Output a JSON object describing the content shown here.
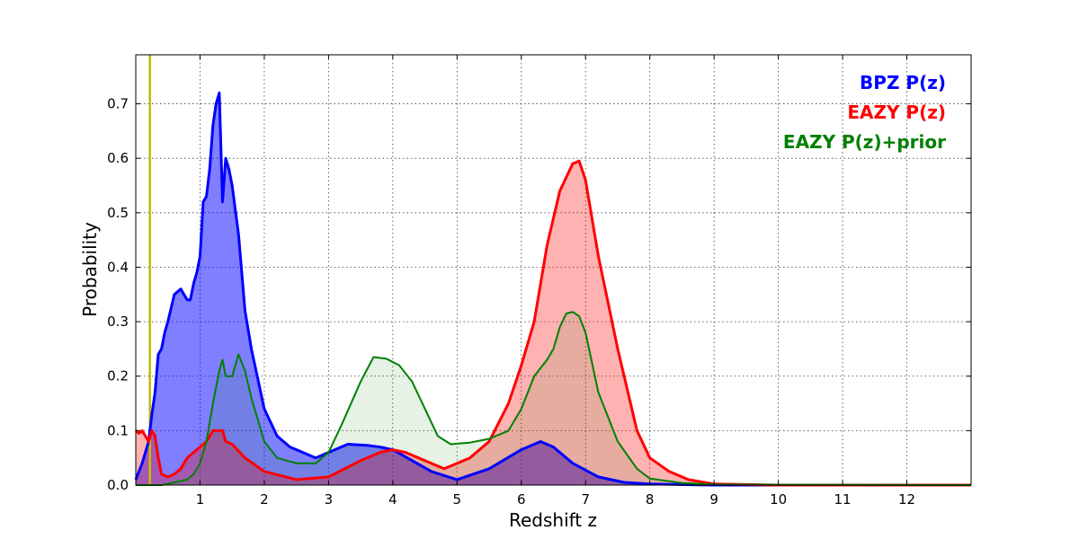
{
  "chart_data": {
    "type": "area",
    "title": "",
    "xlabel": "Redshift z",
    "ylabel": "Probability",
    "xlim": [
      0,
      13
    ],
    "ylim": [
      0,
      0.79
    ],
    "xticks": [
      1,
      2,
      3,
      4,
      5,
      6,
      7,
      8,
      9,
      10,
      11,
      12
    ],
    "yticks": [
      0.0,
      0.1,
      0.2,
      0.3,
      0.4,
      0.5,
      0.6,
      0.7
    ],
    "ytick_labels": [
      "0.0",
      "0.1",
      "0.2",
      "0.3",
      "0.4",
      "0.5",
      "0.6",
      "0.7"
    ],
    "grid": true,
    "legend_position": "top-right",
    "vline": {
      "x": 0.22,
      "color": "#bfbf00"
    },
    "series": [
      {
        "name": "BPZ P(z)",
        "color": "#0000ff",
        "fill_opacity": 0.5,
        "line_width": 3,
        "x": [
          0,
          0.1,
          0.2,
          0.25,
          0.3,
          0.35,
          0.4,
          0.45,
          0.5,
          0.6,
          0.7,
          0.8,
          0.85,
          0.9,
          0.95,
          1.0,
          1.05,
          1.1,
          1.15,
          1.2,
          1.25,
          1.3,
          1.35,
          1.4,
          1.45,
          1.5,
          1.6,
          1.7,
          1.8,
          2.0,
          2.2,
          2.4,
          2.6,
          2.8,
          3.0,
          3.3,
          3.6,
          3.8,
          4.0,
          4.3,
          4.6,
          5.0,
          5.5,
          6.0,
          6.3,
          6.5,
          6.8,
          7.2,
          7.6,
          8.0,
          9.0,
          13.0
        ],
        "y": [
          0.01,
          0.04,
          0.08,
          0.13,
          0.17,
          0.24,
          0.25,
          0.28,
          0.3,
          0.35,
          0.36,
          0.34,
          0.34,
          0.37,
          0.39,
          0.42,
          0.52,
          0.53,
          0.58,
          0.66,
          0.7,
          0.72,
          0.52,
          0.6,
          0.58,
          0.55,
          0.46,
          0.32,
          0.25,
          0.14,
          0.09,
          0.07,
          0.06,
          0.05,
          0.06,
          0.075,
          0.073,
          0.07,
          0.065,
          0.045,
          0.025,
          0.01,
          0.03,
          0.065,
          0.08,
          0.07,
          0.04,
          0.015,
          0.005,
          0.002,
          0.0,
          0.0
        ]
      },
      {
        "name": "EAZY P(z)",
        "color": "#ff0000",
        "fill_opacity": 0.3,
        "line_width": 3,
        "x": [
          0,
          0.05,
          0.1,
          0.15,
          0.2,
          0.25,
          0.3,
          0.35,
          0.4,
          0.5,
          0.6,
          0.7,
          0.8,
          0.9,
          1.0,
          1.1,
          1.2,
          1.3,
          1.35,
          1.4,
          1.5,
          1.7,
          2.0,
          2.5,
          3.0,
          3.5,
          3.8,
          4.0,
          4.2,
          4.5,
          4.8,
          5.2,
          5.5,
          5.8,
          6.0,
          6.2,
          6.4,
          6.6,
          6.8,
          6.9,
          7.0,
          7.2,
          7.5,
          7.8,
          8.0,
          8.3,
          8.6,
          9.0,
          10.0,
          13.0
        ],
        "y": [
          0.1,
          0.095,
          0.1,
          0.09,
          0.08,
          0.1,
          0.09,
          0.05,
          0.02,
          0.015,
          0.02,
          0.03,
          0.05,
          0.06,
          0.07,
          0.08,
          0.1,
          0.1,
          0.1,
          0.08,
          0.075,
          0.05,
          0.025,
          0.01,
          0.015,
          0.045,
          0.06,
          0.065,
          0.06,
          0.045,
          0.03,
          0.05,
          0.08,
          0.15,
          0.22,
          0.3,
          0.44,
          0.54,
          0.59,
          0.595,
          0.56,
          0.42,
          0.25,
          0.1,
          0.05,
          0.025,
          0.01,
          0.002,
          0.0,
          0.0
        ]
      },
      {
        "name": "EAZY P(z)+prior",
        "color": "#008000",
        "fill_opacity": 0.1,
        "line_width": 2,
        "x": [
          0,
          0.4,
          0.6,
          0.8,
          0.9,
          1.0,
          1.1,
          1.2,
          1.3,
          1.35,
          1.4,
          1.5,
          1.6,
          1.7,
          1.8,
          2.0,
          2.2,
          2.5,
          2.8,
          3.0,
          3.2,
          3.5,
          3.7,
          3.9,
          4.1,
          4.3,
          4.5,
          4.7,
          4.9,
          5.2,
          5.5,
          5.8,
          6.0,
          6.2,
          6.4,
          6.5,
          6.6,
          6.7,
          6.8,
          6.9,
          7.0,
          7.2,
          7.5,
          7.8,
          8.0,
          8.5,
          9.0,
          13.0
        ],
        "y": [
          0.0,
          0.0,
          0.005,
          0.01,
          0.02,
          0.04,
          0.08,
          0.15,
          0.21,
          0.23,
          0.2,
          0.2,
          0.24,
          0.21,
          0.16,
          0.08,
          0.05,
          0.04,
          0.04,
          0.06,
          0.11,
          0.19,
          0.235,
          0.232,
          0.22,
          0.19,
          0.14,
          0.09,
          0.075,
          0.078,
          0.085,
          0.1,
          0.14,
          0.2,
          0.23,
          0.25,
          0.29,
          0.315,
          0.318,
          0.31,
          0.28,
          0.17,
          0.08,
          0.03,
          0.012,
          0.004,
          0.001,
          0.0
        ]
      }
    ]
  }
}
